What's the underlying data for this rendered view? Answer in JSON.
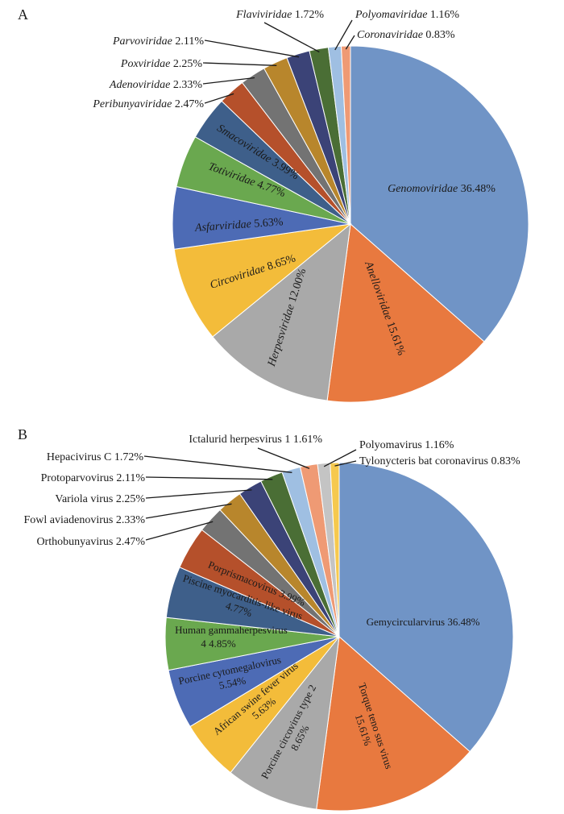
{
  "chart_data": [
    {
      "type": "pie",
      "panel_label": "A",
      "title": "",
      "italic_labels": true,
      "series": [
        {
          "name": "Genomoviridae",
          "value": 36.48,
          "label": "36.48%",
          "color": "#7094c6"
        },
        {
          "name": "Anelloviridae",
          "value": 15.61,
          "label": "15.61%",
          "color": "#e8793f"
        },
        {
          "name": "Herpesviridae",
          "value": 12.0,
          "label": "12.00%",
          "color": "#a9a9a9"
        },
        {
          "name": "Circoviridae",
          "value": 8.65,
          "label": "8.65%",
          "color": "#f3bc3a"
        },
        {
          "name": "Asfarviridae",
          "value": 5.63,
          "label": "5.63%",
          "color": "#4d6bb5"
        },
        {
          "name": "Totiviridae",
          "value": 4.77,
          "label": "4.77%",
          "color": "#6aa84f"
        },
        {
          "name": "Smacoviridae",
          "value": 3.99,
          "label": "3.99%",
          "color": "#3e5f8a"
        },
        {
          "name": "Peribunyaviridae",
          "value": 2.47,
          "label": "2.47%",
          "color": "#b5502b"
        },
        {
          "name": "Adenoviridae",
          "value": 2.33,
          "label": "2.33%",
          "color": "#737373"
        },
        {
          "name": "Poxviridae",
          "value": 2.25,
          "label": "2.25%",
          "color": "#b8862c"
        },
        {
          "name": "Parvoviridae",
          "value": 2.11,
          "label": "2.11%",
          "color": "#3b4377"
        },
        {
          "name": "Flaviviridae",
          "value": 1.72,
          "label": "1.72%",
          "color": "#4a6e35"
        },
        {
          "name": "Polyomaviridae",
          "value": 1.16,
          "label": "1.16%",
          "color": "#9fbfe2"
        },
        {
          "name": "Coronaviridae",
          "value": 0.83,
          "label": "0.83%",
          "color": "#ef9a74"
        }
      ]
    },
    {
      "type": "pie",
      "panel_label": "B",
      "title": "",
      "italic_labels": false,
      "series": [
        {
          "name": "Gemycircularvirus",
          "value": 36.48,
          "label": "36.48%",
          "color": "#7094c6"
        },
        {
          "name": "Torque teno sus virus",
          "value": 15.61,
          "label": "15.61%",
          "color": "#e8793f"
        },
        {
          "name": "Porcine circovirus type 2",
          "value": 8.65,
          "label": "8.65%",
          "color": "#a9a9a9"
        },
        {
          "name": "African swine fever virus",
          "value": 5.63,
          "label": "5.63%",
          "color": "#f3bc3a"
        },
        {
          "name": "Porcine cytomegalovirus",
          "value": 5.54,
          "label": "5.54%",
          "color": "#4d6bb5"
        },
        {
          "name": "Human gammaherpesvirus 4",
          "value": 4.85,
          "label": "4.85%",
          "color": "#6aa84f"
        },
        {
          "name": "Piscine myocarditis-like virus",
          "value": 4.77,
          "label": "4.77%",
          "color": "#3e5f8a"
        },
        {
          "name": "Porprismacovirus",
          "value": 3.99,
          "label": "3.99%",
          "color": "#b5502b"
        },
        {
          "name": "Orthobunyavirus",
          "value": 2.47,
          "label": "2.47%",
          "color": "#737373"
        },
        {
          "name": "Fowl aviadenovirus",
          "value": 2.33,
          "label": "2.33%",
          "color": "#b8862c"
        },
        {
          "name": "Variola virus",
          "value": 2.25,
          "label": "2.25%",
          "color": "#3b4377"
        },
        {
          "name": "Protoparvovirus",
          "value": 2.11,
          "label": "2.11%",
          "color": "#4a6e35"
        },
        {
          "name": "Hepacivirus C",
          "value": 1.72,
          "label": "1.72%",
          "color": "#9fbfe2"
        },
        {
          "name": "Ictalurid herpesvirus 1",
          "value": 1.61,
          "label": "1.61%",
          "color": "#ef9a74"
        },
        {
          "name": "Polyomavirus",
          "value": 1.16,
          "label": "1.16%",
          "color": "#c4c4c4"
        },
        {
          "name": "Tylonycteris bat coronavirus",
          "value": 0.83,
          "label": "0.83%",
          "color": "#f6c94e"
        }
      ]
    }
  ]
}
